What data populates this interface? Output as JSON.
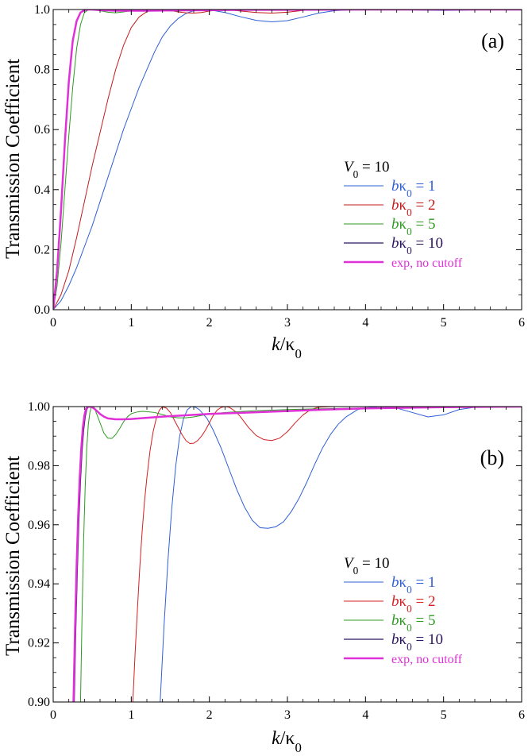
{
  "chart_data": [
    {
      "type": "line",
      "panel_label": "(a)",
      "xlabel": "k/κ0",
      "ylabel": "Transmission Coefficient",
      "xlim": [
        0,
        6
      ],
      "ylim": [
        0,
        1
      ],
      "x_ticks": [
        "0",
        "1",
        "2",
        "3",
        "4",
        "5",
        "6"
      ],
      "y_ticks": [
        "0.0",
        "0.2",
        "0.4",
        "0.6",
        "0.8",
        "1.0"
      ],
      "grid": false,
      "legend_position": "center-right",
      "legend_title": "V0 = 10",
      "series": [
        {
          "name": "bκ0 = 1",
          "color": "#2f5fd6",
          "stroke_width": 1,
          "x": [
            0,
            0.1,
            0.2,
            0.3,
            0.4,
            0.5,
            0.6,
            0.7,
            0.8,
            0.9,
            1.0,
            1.1,
            1.2,
            1.3,
            1.4,
            1.5,
            1.6,
            1.7,
            1.8,
            1.9,
            2.0,
            2.2,
            2.4,
            2.6,
            2.8,
            3.0,
            3.2,
            3.4,
            3.6,
            3.8,
            4.0,
            4.2,
            4.5,
            5.0,
            5.5,
            6.0
          ],
          "y": [
            0,
            0.03,
            0.08,
            0.14,
            0.21,
            0.28,
            0.36,
            0.44,
            0.52,
            0.6,
            0.67,
            0.74,
            0.8,
            0.86,
            0.91,
            0.945,
            0.97,
            0.987,
            0.996,
            1.0,
            0.999,
            0.99,
            0.976,
            0.964,
            0.959,
            0.963,
            0.975,
            0.988,
            0.996,
            0.999,
            1.0,
            1.0,
            0.999,
            0.997,
            0.999,
            1.0
          ]
        },
        {
          "name": "bκ0 = 2",
          "color": "#c41a1a",
          "stroke_width": 1,
          "x": [
            0,
            0.1,
            0.2,
            0.3,
            0.4,
            0.5,
            0.6,
            0.7,
            0.8,
            0.9,
            1.0,
            1.1,
            1.2,
            1.3,
            1.4,
            1.5,
            1.6,
            1.7,
            1.8,
            1.9,
            2.0,
            2.2,
            2.4,
            2.6,
            2.8,
            3.0,
            3.2,
            3.4,
            4.0,
            5.0,
            6.0
          ],
          "y": [
            0,
            0.05,
            0.13,
            0.24,
            0.36,
            0.48,
            0.59,
            0.7,
            0.8,
            0.88,
            0.94,
            0.975,
            0.993,
            0.999,
            1.0,
            0.997,
            0.992,
            0.989,
            0.988,
            0.99,
            0.995,
            1.0,
            0.995,
            0.99,
            0.988,
            0.991,
            0.997,
            1.0,
            1.0,
            1.0,
            1.0
          ]
        },
        {
          "name": "bκ0 = 5",
          "color": "#2e9a22",
          "stroke_width": 1,
          "x": [
            0,
            0.05,
            0.1,
            0.15,
            0.2,
            0.25,
            0.3,
            0.35,
            0.4,
            0.45,
            0.5,
            0.6,
            0.7,
            0.8,
            0.9,
            1.0,
            1.1,
            1.2,
            1.3,
            1.4,
            1.6,
            1.8,
            2.0,
            2.5,
            3.0,
            4.0,
            6.0
          ],
          "y": [
            0,
            0.08,
            0.22,
            0.4,
            0.58,
            0.74,
            0.87,
            0.95,
            0.99,
            0.999,
            1.0,
            0.996,
            0.991,
            0.989,
            0.992,
            0.996,
            0.998,
            0.998,
            0.997,
            0.996,
            0.995,
            0.997,
            0.998,
            0.999,
            0.999,
            1.0,
            1.0
          ]
        },
        {
          "name": "bκ0 = 10",
          "color": "#2a1460",
          "stroke_width": 1.2,
          "x": [
            0,
            0.05,
            0.1,
            0.15,
            0.2,
            0.25,
            0.3,
            0.35,
            0.4,
            0.45,
            0.5,
            0.6,
            0.7,
            0.8,
            1.0,
            1.2,
            1.5,
            2.0,
            2.5,
            3.0,
            4.0,
            5.0,
            6.0
          ],
          "y": [
            0,
            0.12,
            0.32,
            0.55,
            0.75,
            0.89,
            0.96,
            0.99,
            0.998,
            1.0,
            1.0,
            0.998,
            0.997,
            0.996,
            0.996,
            0.996,
            0.997,
            0.998,
            0.999,
            0.999,
            1.0,
            1.0,
            1.0
          ]
        },
        {
          "name": "exp, no cutoff",
          "color": "#e030d8",
          "stroke_width": 2.5,
          "x": [
            0,
            0.05,
            0.1,
            0.15,
            0.2,
            0.25,
            0.3,
            0.35,
            0.4,
            0.45,
            0.5,
            0.6,
            0.7,
            0.8,
            1.0,
            1.2,
            1.5,
            2.0,
            2.5,
            3.0,
            4.0,
            5.0,
            6.0
          ],
          "y": [
            0,
            0.13,
            0.33,
            0.56,
            0.76,
            0.895,
            0.962,
            0.99,
            0.998,
            1.0,
            1.0,
            0.998,
            0.997,
            0.996,
            0.996,
            0.996,
            0.997,
            0.998,
            0.999,
            0.999,
            1.0,
            1.0,
            1.0
          ]
        }
      ]
    },
    {
      "type": "line",
      "panel_label": "(b)",
      "xlabel": "k/κ0",
      "ylabel": "Transmission Coefficient",
      "xlim": [
        0,
        6
      ],
      "ylim": [
        0.9,
        1.0
      ],
      "x_ticks": [
        "0",
        "1",
        "2",
        "3",
        "4",
        "5",
        "6"
      ],
      "y_ticks": [
        "0.90",
        "0.92",
        "0.94",
        "0.96",
        "0.98",
        "1.00"
      ],
      "grid": false,
      "legend_position": "lower-right",
      "legend_title": "V0 = 10",
      "series": [
        {
          "name": "bκ0 = 1",
          "color": "#2f5fd6",
          "stroke_width": 1,
          "x": [
            1.37,
            1.42,
            1.47,
            1.52,
            1.57,
            1.62,
            1.67,
            1.72,
            1.77,
            1.82,
            1.87,
            1.92,
            1.97,
            2.05,
            2.15,
            2.25,
            2.35,
            2.45,
            2.55,
            2.65,
            2.75,
            2.85,
            2.95,
            3.05,
            3.15,
            3.25,
            3.35,
            3.45,
            3.55,
            3.65,
            3.75,
            3.9,
            4.0,
            4.2,
            4.4,
            4.6,
            4.8,
            5.0,
            5.2,
            5.4,
            5.6,
            5.9
          ],
          "y": [
            0.9,
            0.926,
            0.948,
            0.966,
            0.98,
            0.99,
            0.996,
            0.999,
            1.0,
            0.9998,
            0.999,
            0.9975,
            0.996,
            0.992,
            0.986,
            0.979,
            0.972,
            0.966,
            0.9615,
            0.959,
            0.9588,
            0.9593,
            0.961,
            0.9645,
            0.969,
            0.9745,
            0.9805,
            0.986,
            0.9905,
            0.994,
            0.9965,
            0.999,
            0.9996,
            1.0,
            0.9995,
            0.998,
            0.9965,
            0.9972,
            0.999,
            0.9998,
            1.0,
            1.0
          ]
        },
        {
          "name": "bκ0 = 2",
          "color": "#d42020",
          "stroke_width": 1,
          "x": [
            1.02,
            1.05,
            1.08,
            1.11,
            1.14,
            1.17,
            1.2,
            1.24,
            1.28,
            1.32,
            1.36,
            1.4,
            1.45,
            1.5,
            1.55,
            1.6,
            1.65,
            1.7,
            1.75,
            1.8,
            1.85,
            1.9,
            1.95,
            2.0,
            2.05,
            2.1,
            2.15,
            2.2,
            2.25,
            2.3,
            2.35,
            2.4,
            2.5,
            2.6,
            2.7,
            2.8,
            2.9,
            3.0,
            3.1,
            3.2,
            3.3,
            3.4,
            3.6,
            4.0,
            5.0,
            6.0
          ],
          "y": [
            0.9,
            0.917,
            0.932,
            0.946,
            0.958,
            0.968,
            0.976,
            0.985,
            0.9915,
            0.996,
            0.9988,
            0.9999,
            0.9995,
            0.998,
            0.9955,
            0.993,
            0.9905,
            0.9885,
            0.9875,
            0.9876,
            0.9885,
            0.99,
            0.992,
            0.9945,
            0.997,
            0.9988,
            0.9997,
            1.0,
            0.9998,
            0.999,
            0.998,
            0.9965,
            0.993,
            0.9902,
            0.9888,
            0.9885,
            0.9893,
            0.9915,
            0.9945,
            0.9972,
            0.999,
            0.9998,
            1.0,
            1.0,
            1.0,
            1.0
          ]
        },
        {
          "name": "bκ0 = 5",
          "color": "#2e9a22",
          "stroke_width": 1,
          "x": [
            0.35,
            0.37,
            0.39,
            0.41,
            0.43,
            0.45,
            0.47,
            0.49,
            0.51,
            0.53,
            0.55,
            0.6,
            0.65,
            0.7,
            0.75,
            0.8,
            0.85,
            0.9,
            0.95,
            1.0,
            1.05,
            1.1,
            1.15,
            1.2,
            1.3,
            1.4,
            1.5,
            1.6,
            1.7,
            1.8,
            1.9,
            2.0,
            2.2,
            2.5,
            3.0,
            3.5,
            4.0,
            5.0,
            6.0
          ],
          "y": [
            0.9,
            0.93,
            0.955,
            0.973,
            0.986,
            0.994,
            0.998,
            0.9998,
            1.0,
            0.9995,
            0.998,
            0.9945,
            0.991,
            0.9893,
            0.9892,
            0.9905,
            0.9925,
            0.9948,
            0.9965,
            0.9976,
            0.998,
            0.9983,
            0.9984,
            0.9983,
            0.998,
            0.9973,
            0.9965,
            0.9962,
            0.9962,
            0.9965,
            0.997,
            0.9975,
            0.998,
            0.9985,
            0.999,
            0.9993,
            0.9995,
            0.9998,
            1.0
          ]
        },
        {
          "name": "bκ0 = 10",
          "color": "#2a1460",
          "stroke_width": 1.2,
          "x": [
            0.27,
            0.29,
            0.31,
            0.33,
            0.35,
            0.37,
            0.39,
            0.41,
            0.43,
            0.45,
            0.47,
            0.5,
            0.53,
            0.56,
            0.6,
            0.65,
            0.7,
            0.8,
            0.9,
            1.0,
            1.1,
            1.2,
            1.4,
            1.6,
            1.8,
            2.0,
            2.5,
            3.0,
            3.5,
            4.0,
            5.0,
            6.0
          ],
          "y": [
            0.9,
            0.925,
            0.945,
            0.962,
            0.975,
            0.985,
            0.992,
            0.9965,
            0.999,
            0.9999,
            1.0,
            0.9998,
            0.9992,
            0.9985,
            0.9975,
            0.9966,
            0.996,
            0.9957,
            0.9957,
            0.9958,
            0.996,
            0.9962,
            0.9966,
            0.9969,
            0.9972,
            0.9975,
            0.998,
            0.9985,
            0.999,
            0.9994,
            0.9998,
            1.0
          ]
        },
        {
          "name": "exp, no cutoff",
          "color": "#e030d8",
          "stroke_width": 2.5,
          "x": [
            0.26,
            0.28,
            0.3,
            0.32,
            0.34,
            0.36,
            0.38,
            0.4,
            0.42,
            0.44,
            0.46,
            0.5,
            0.53,
            0.56,
            0.6,
            0.65,
            0.7,
            0.8,
            0.9,
            1.0,
            1.1,
            1.2,
            1.4,
            1.6,
            1.8,
            2.0,
            2.5,
            3.0,
            3.5,
            4.0,
            5.0,
            6.0
          ],
          "y": [
            0.9,
            0.925,
            0.946,
            0.963,
            0.976,
            0.986,
            0.993,
            0.997,
            0.9992,
            0.9999,
            1.0,
            0.9998,
            0.9992,
            0.9985,
            0.9975,
            0.9966,
            0.996,
            0.9957,
            0.9957,
            0.9958,
            0.996,
            0.9962,
            0.9966,
            0.9969,
            0.9972,
            0.9975,
            0.998,
            0.9985,
            0.999,
            0.9994,
            0.9998,
            1.0
          ]
        }
      ]
    }
  ]
}
